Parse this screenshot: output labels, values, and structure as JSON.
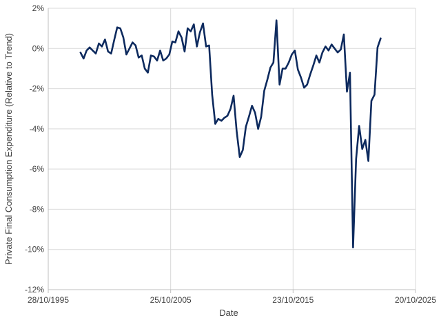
{
  "chart_data": {
    "type": "line",
    "xlabel": "Date",
    "ylabel": "Private Final Consumption Expenditure (Relative to Trend)",
    "x_range": [
      "1995-10-28",
      "2025-10-20"
    ],
    "x_ticks": [
      "28/10/1995",
      "25/10/2005",
      "23/10/2015",
      "20/10/2025"
    ],
    "ylim": [
      -12,
      2
    ],
    "y_ticks": [
      "2%",
      "0%",
      "-2%",
      "-4%",
      "-6%",
      "-8%",
      "-10%",
      "-12%"
    ],
    "y_tick_values": [
      2,
      0,
      -2,
      -4,
      -6,
      -8,
      -10,
      -12
    ],
    "grid": true,
    "line_color": "#0d2a5e",
    "series": [
      {
        "x": [
          "1998-06",
          "1998-09",
          "1998-12",
          "1999-03",
          "1999-06",
          "1999-09",
          "1999-12",
          "2000-03",
          "2000-06",
          "2000-09",
          "2000-12",
          "2001-03",
          "2001-06",
          "2001-09",
          "2001-12",
          "2002-03",
          "2002-06",
          "2002-09",
          "2002-12",
          "2003-03",
          "2003-06",
          "2003-09",
          "2003-12",
          "2004-03",
          "2004-06",
          "2004-09",
          "2004-12",
          "2005-03",
          "2005-06",
          "2005-09",
          "2005-12",
          "2006-03",
          "2006-06",
          "2006-09",
          "2006-12",
          "2007-03",
          "2007-06",
          "2007-09",
          "2007-12",
          "2008-03",
          "2008-06",
          "2008-09",
          "2008-12",
          "2009-03",
          "2009-06",
          "2009-09",
          "2009-12",
          "2010-03",
          "2010-06",
          "2010-09",
          "2010-12",
          "2011-03",
          "2011-06",
          "2011-09",
          "2011-12",
          "2012-03",
          "2012-06",
          "2012-09",
          "2012-12",
          "2013-03",
          "2013-06",
          "2013-09",
          "2013-12",
          "2014-03",
          "2014-06",
          "2014-09",
          "2014-12",
          "2015-03",
          "2015-06",
          "2015-09",
          "2015-12",
          "2016-03",
          "2016-06",
          "2016-09",
          "2016-12",
          "2017-03",
          "2017-06",
          "2017-09",
          "2017-12",
          "2018-03",
          "2018-06",
          "2018-09",
          "2018-12",
          "2019-03",
          "2019-06",
          "2019-09",
          "2019-12",
          "2020-03",
          "2020-06",
          "2020-09",
          "2020-12",
          "2021-03",
          "2021-06",
          "2021-09",
          "2021-12",
          "2022-03",
          "2022-06",
          "2022-09",
          "2022-12"
        ],
        "y": [
          -0.2,
          -0.5,
          -0.1,
          0.05,
          -0.1,
          -0.25,
          0.25,
          0.1,
          0.45,
          -0.15,
          -0.25,
          0.4,
          1.05,
          1.0,
          0.55,
          -0.3,
          0.0,
          0.3,
          0.15,
          -0.45,
          -0.35,
          -1.0,
          -1.2,
          -0.35,
          -0.4,
          -0.6,
          -0.1,
          -0.6,
          -0.5,
          -0.3,
          0.35,
          0.3,
          0.85,
          0.55,
          -0.15,
          1.0,
          0.85,
          1.2,
          0.1,
          0.8,
          1.25,
          0.1,
          0.15,
          -2.3,
          -3.75,
          -3.5,
          -3.6,
          -3.45,
          -3.35,
          -3.0,
          -2.35,
          -4.1,
          -5.4,
          -5.05,
          -3.9,
          -3.4,
          -2.85,
          -3.2,
          -4.0,
          -3.4,
          -2.1,
          -1.55,
          -0.95,
          -0.7,
          1.4,
          -1.8,
          -1.0,
          -1.0,
          -0.7,
          -0.3,
          -0.1,
          -1.05,
          -1.45,
          -1.95,
          -1.8,
          -1.3,
          -0.85,
          -0.35,
          -0.7,
          -0.2,
          0.1,
          -0.1,
          0.2,
          0.0,
          -0.2,
          -0.05,
          0.7,
          -2.15,
          -1.2,
          -9.9,
          -5.5,
          -3.85,
          -5.0,
          -4.55,
          -5.6,
          -2.6,
          -2.3,
          0.05,
          0.5
        ]
      }
    ]
  }
}
